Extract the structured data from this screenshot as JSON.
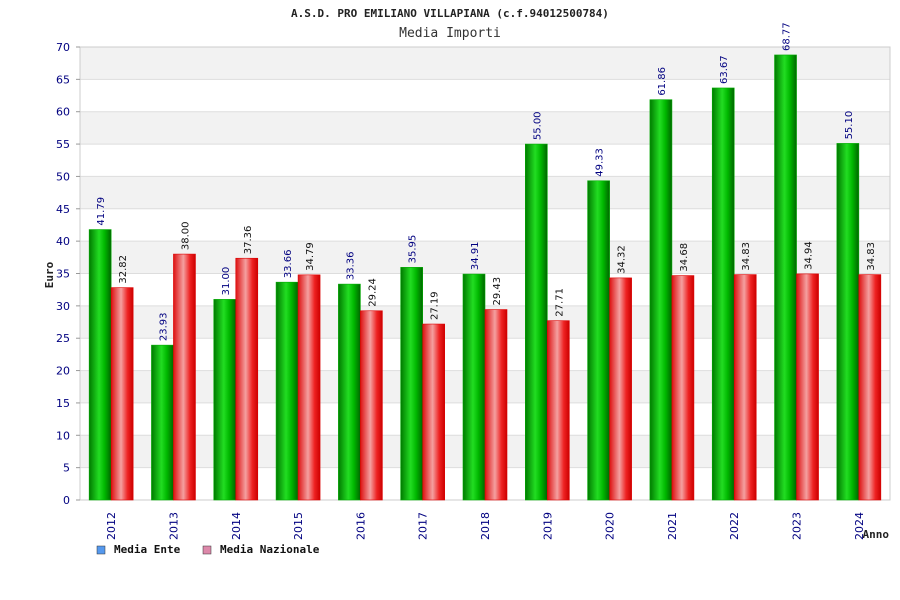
{
  "chart_data": {
    "type": "bar",
    "title": "A.S.D. PRO EMILIANO VILLAPIANA (c.f.94012500784)",
    "subtitle": "Media Importi",
    "xlabel": "Anno",
    "ylabel": "Euro",
    "ylim": [
      0,
      70
    ],
    "yticks": [
      0,
      5,
      10,
      15,
      20,
      25,
      30,
      35,
      40,
      45,
      50,
      55,
      60,
      65,
      70
    ],
    "categories": [
      "2012",
      "2013",
      "2014",
      "2015",
      "2016",
      "2017",
      "2018",
      "2019",
      "2020",
      "2021",
      "2022",
      "2023",
      "2024"
    ],
    "series": [
      {
        "name": "Media Ente",
        "color": "#00bb00",
        "legend_color": "#5599ee",
        "values": [
          41.79,
          23.93,
          31.0,
          33.66,
          33.36,
          35.95,
          34.91,
          55.0,
          49.33,
          61.86,
          63.67,
          68.77,
          55.1
        ],
        "labels": [
          "41.79",
          "23.93",
          "31.00",
          "33.66",
          "33.36",
          "35.95",
          "34.91",
          "55.00",
          "49.33",
          "61.86",
          "63.67",
          "68.77",
          "55.10"
        ]
      },
      {
        "name": "Media Nazionale",
        "color": "#ee2222",
        "legend_color": "#dd88aa",
        "values": [
          32.82,
          38.0,
          37.36,
          34.79,
          29.24,
          27.19,
          29.43,
          27.71,
          34.32,
          34.68,
          34.83,
          34.94,
          34.83
        ],
        "labels": [
          "32.82",
          "38.00",
          "37.36",
          "34.79",
          "29.24",
          "27.19",
          "29.43",
          "27.71",
          "34.32",
          "34.68",
          "34.83",
          "34.94",
          "34.83"
        ]
      }
    ],
    "grid": true,
    "legend": "bottom-left"
  }
}
